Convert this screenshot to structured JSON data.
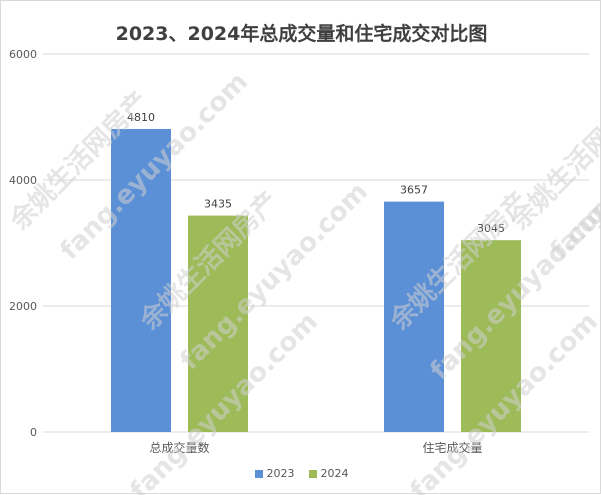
{
  "chart_data": {
    "type": "bar",
    "title": "2023、2024年总成交量和住宅成交对比图",
    "categories": [
      "总成交量数",
      "住宅成交量"
    ],
    "series": [
      {
        "name": "2023",
        "values": [
          4810,
          3657
        ],
        "color": "#5b8fd6"
      },
      {
        "name": "2024",
        "values": [
          3435,
          3045
        ],
        "color": "#9dbb59"
      }
    ],
    "ylim": [
      0,
      6000
    ],
    "yticks": [
      0,
      2000,
      4000,
      6000
    ],
    "grid": true,
    "legend": "bottom",
    "data_labels": true
  },
  "watermark": {
    "lines": [
      "余姚生活网房产",
      "fang.eyuyao.com"
    ],
    "color": "#d0d0d0"
  }
}
